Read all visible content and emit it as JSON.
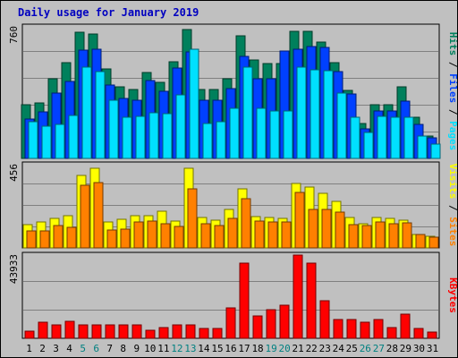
{
  "title": "Daily usage for January 2019",
  "chart_data": [
    {
      "type": "bar",
      "panel": "hits-files-pages",
      "ymax_label": "760",
      "legend": [
        "Pages",
        "Files",
        "Hits"
      ],
      "colors": {
        "Hits": "#00805c",
        "Files": "#0040ff",
        "Pages": "#00e0ff"
      },
      "ylim": [
        0,
        760
      ],
      "categories": [
        "1",
        "2",
        "3",
        "4",
        "5",
        "6",
        "7",
        "8",
        "9",
        "10",
        "11",
        "12",
        "13",
        "14",
        "15",
        "16",
        "17",
        "18",
        "19",
        "20",
        "21",
        "22",
        "23",
        "24",
        "25",
        "26",
        "27",
        "28",
        "29",
        "30",
        "31"
      ],
      "series": [
        {
          "name": "Hits",
          "values": [
            310,
            320,
            455,
            550,
            725,
            715,
            515,
            410,
            395,
            495,
            435,
            555,
            740,
            395,
            395,
            455,
            705,
            565,
            545,
            545,
            730,
            730,
            665,
            550,
            390,
            200,
            310,
            310,
            410,
            235,
            130
          ]
        },
        {
          "name": "Files",
          "values": [
            225,
            265,
            375,
            440,
            620,
            625,
            420,
            345,
            335,
            445,
            385,
            520,
            610,
            335,
            335,
            400,
            585,
            455,
            455,
            615,
            625,
            640,
            635,
            500,
            370,
            170,
            270,
            270,
            330,
            195,
            120
          ]
        },
        {
          "name": "Pages",
          "values": [
            210,
            185,
            195,
            245,
            525,
            500,
            335,
            235,
            240,
            260,
            255,
            365,
            625,
            200,
            210,
            290,
            525,
            285,
            270,
            270,
            525,
            510,
            505,
            375,
            235,
            150,
            240,
            235,
            235,
            130,
            80
          ]
        }
      ]
    },
    {
      "type": "bar",
      "panel": "visits-sites",
      "ymax_label": "456",
      "legend": [
        "Sites",
        "Visits"
      ],
      "colors": {
        "Visits": "#ffff00",
        "Sites": "#ff8000"
      },
      "ylim": [
        0,
        456
      ],
      "categories": [
        "1",
        "2",
        "3",
        "4",
        "5",
        "6",
        "7",
        "8",
        "9",
        "10",
        "11",
        "12",
        "13",
        "14",
        "15",
        "16",
        "17",
        "18",
        "19",
        "20",
        "21",
        "22",
        "23",
        "24",
        "25",
        "26",
        "27",
        "28",
        "29",
        "30",
        "31"
      ],
      "series": [
        {
          "name": "Visits",
          "values": [
            125,
            140,
            160,
            175,
            395,
            430,
            140,
            155,
            175,
            175,
            200,
            145,
            430,
            165,
            150,
            210,
            320,
            170,
            165,
            160,
            350,
            330,
            295,
            250,
            165,
            130,
            165,
            160,
            150,
            75,
            65
          ]
        },
        {
          "name": "Sites",
          "values": [
            90,
            90,
            120,
            110,
            340,
            355,
            95,
            100,
            140,
            145,
            130,
            115,
            320,
            130,
            120,
            160,
            265,
            145,
            140,
            140,
            300,
            210,
            210,
            195,
            125,
            120,
            140,
            130,
            135,
            75,
            60
          ]
        }
      ]
    },
    {
      "type": "bar",
      "panel": "kbytes",
      "ymax_label": "43933",
      "legend": [
        "KBytes"
      ],
      "colors": {
        "KBytes": "#ff0000"
      },
      "ylim": [
        0,
        43933
      ],
      "categories": [
        "1",
        "2",
        "3",
        "4",
        "5",
        "6",
        "7",
        "8",
        "9",
        "10",
        "11",
        "12",
        "13",
        "14",
        "15",
        "16",
        "17",
        "18",
        "19",
        "20",
        "21",
        "22",
        "23",
        "24",
        "25",
        "26",
        "27",
        "28",
        "29",
        "30",
        "31"
      ],
      "series": [
        {
          "name": "KBytes",
          "values": [
            3800,
            8500,
            6900,
            9000,
            6900,
            6900,
            7200,
            7200,
            7200,
            4000,
            5800,
            6900,
            6900,
            5000,
            5000,
            15800,
            39300,
            11900,
            14800,
            17300,
            43500,
            39300,
            19700,
            9900,
            9900,
            8200,
            9900,
            5800,
            12400,
            5000,
            3300
          ]
        }
      ]
    }
  ],
  "x_tick_colors": {
    "weekday": "#000000",
    "weekend": "#008080"
  },
  "weekend_days": [
    "5",
    "6",
    "12",
    "13",
    "19",
    "20",
    "26",
    "27"
  ]
}
